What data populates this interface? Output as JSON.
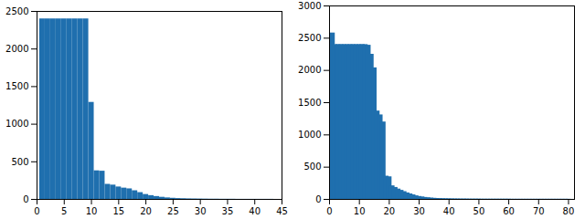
{
  "chart_data": [
    {
      "type": "bar",
      "color": "#1f6fae",
      "x": [
        1,
        2,
        3,
        4,
        5,
        6,
        7,
        8,
        9,
        10,
        11,
        12,
        13,
        14,
        15,
        16,
        17,
        18,
        19,
        20,
        21,
        22,
        23,
        24,
        25,
        26,
        27,
        28,
        29,
        30,
        31,
        32,
        33,
        34,
        35,
        36,
        37,
        38,
        39,
        40,
        41,
        42,
        43
      ],
      "values": [
        2400,
        2400,
        2400,
        2400,
        2400,
        2400,
        2400,
        2400,
        2400,
        1290,
        380,
        375,
        200,
        190,
        165,
        150,
        140,
        115,
        90,
        65,
        50,
        38,
        28,
        20,
        15,
        11,
        9,
        7,
        6,
        5,
        4,
        3,
        3,
        2,
        2,
        2,
        1,
        1,
        1,
        1,
        1,
        1,
        1
      ],
      "xlim": [
        0,
        45
      ],
      "xticks": [
        0,
        5,
        10,
        15,
        20,
        25,
        30,
        35,
        40,
        45
      ],
      "ylim": [
        0,
        2500
      ],
      "yticks": [
        0,
        500,
        1000,
        1500,
        2000,
        2500
      ]
    },
    {
      "type": "bar",
      "color": "#1f6fae",
      "x": [
        1,
        2,
        3,
        4,
        5,
        6,
        7,
        8,
        9,
        10,
        11,
        12,
        13,
        14,
        15,
        16,
        17,
        18,
        19,
        20,
        21,
        22,
        23,
        24,
        25,
        26,
        27,
        28,
        29,
        30,
        31,
        32,
        33,
        34,
        35,
        36,
        37,
        38,
        39,
        40,
        41,
        42,
        43,
        44,
        45,
        46,
        47,
        48,
        49,
        50,
        51,
        52,
        53,
        54,
        55,
        56,
        57,
        58,
        59,
        60,
        61,
        62,
        63,
        64,
        65,
        66,
        67,
        68,
        69,
        70,
        71,
        72,
        73,
        74,
        75,
        76,
        77,
        78,
        79,
        80
      ],
      "values": [
        2580,
        2400,
        2400,
        2400,
        2400,
        2400,
        2400,
        2400,
        2400,
        2400,
        2400,
        2400,
        2390,
        2250,
        2040,
        1370,
        1310,
        1200,
        360,
        350,
        210,
        185,
        160,
        140,
        120,
        100,
        85,
        70,
        55,
        45,
        38,
        30,
        25,
        20,
        17,
        14,
        12,
        10,
        9,
        8,
        7,
        6,
        6,
        5,
        5,
        5,
        4,
        4,
        4,
        4,
        3,
        3,
        3,
        3,
        3,
        3,
        3,
        3,
        3,
        3,
        2,
        2,
        2,
        2,
        2,
        2,
        2,
        2,
        2,
        2,
        2,
        2,
        2,
        2,
        2,
        2,
        2,
        2,
        2,
        2
      ],
      "xlim": [
        0,
        82
      ],
      "xticks": [
        0,
        10,
        20,
        30,
        40,
        50,
        60,
        70,
        80
      ],
      "ylim": [
        0,
        3000
      ],
      "yticks": [
        0,
        500,
        1000,
        1500,
        2000,
        2500,
        3000
      ]
    }
  ]
}
